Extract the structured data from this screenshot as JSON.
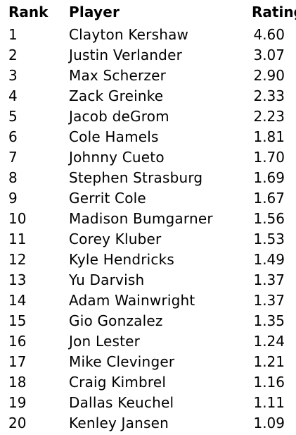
{
  "table": {
    "headers": {
      "rank": "Rank",
      "player": "Player",
      "rating": "Rating"
    },
    "rows": [
      {
        "rank": "1",
        "player": "Clayton Kershaw",
        "rating": "4.60"
      },
      {
        "rank": "2",
        "player": "Justin Verlander",
        "rating": "3.07"
      },
      {
        "rank": "3",
        "player": "Max Scherzer",
        "rating": "2.90"
      },
      {
        "rank": "4",
        "player": "Zack Greinke",
        "rating": "2.33"
      },
      {
        "rank": "5",
        "player": "Jacob deGrom",
        "rating": "2.23"
      },
      {
        "rank": "6",
        "player": "Cole Hamels",
        "rating": "1.81"
      },
      {
        "rank": "7",
        "player": "Johnny Cueto",
        "rating": "1.70"
      },
      {
        "rank": "8",
        "player": "Stephen Strasburg",
        "rating": "1.69"
      },
      {
        "rank": "9",
        "player": "Gerrit Cole",
        "rating": "1.67"
      },
      {
        "rank": "10",
        "player": "Madison Bumgarner",
        "rating": "1.56"
      },
      {
        "rank": "11",
        "player": "Corey Kluber",
        "rating": "1.53"
      },
      {
        "rank": "12",
        "player": "Kyle Hendricks",
        "rating": "1.49"
      },
      {
        "rank": "13",
        "player": "Yu Darvish",
        "rating": "1.37"
      },
      {
        "rank": "14",
        "player": "Adam Wainwright",
        "rating": "1.37"
      },
      {
        "rank": "15",
        "player": "Gio Gonzalez",
        "rating": "1.35"
      },
      {
        "rank": "16",
        "player": "Jon Lester",
        "rating": "1.24"
      },
      {
        "rank": "17",
        "player": "Mike Clevinger",
        "rating": "1.21"
      },
      {
        "rank": "18",
        "player": "Craig Kimbrel",
        "rating": "1.16"
      },
      {
        "rank": "19",
        "player": "Dallas Keuchel",
        "rating": "1.11"
      },
      {
        "rank": "20",
        "player": "Kenley Jansen",
        "rating": "1.09"
      }
    ]
  }
}
